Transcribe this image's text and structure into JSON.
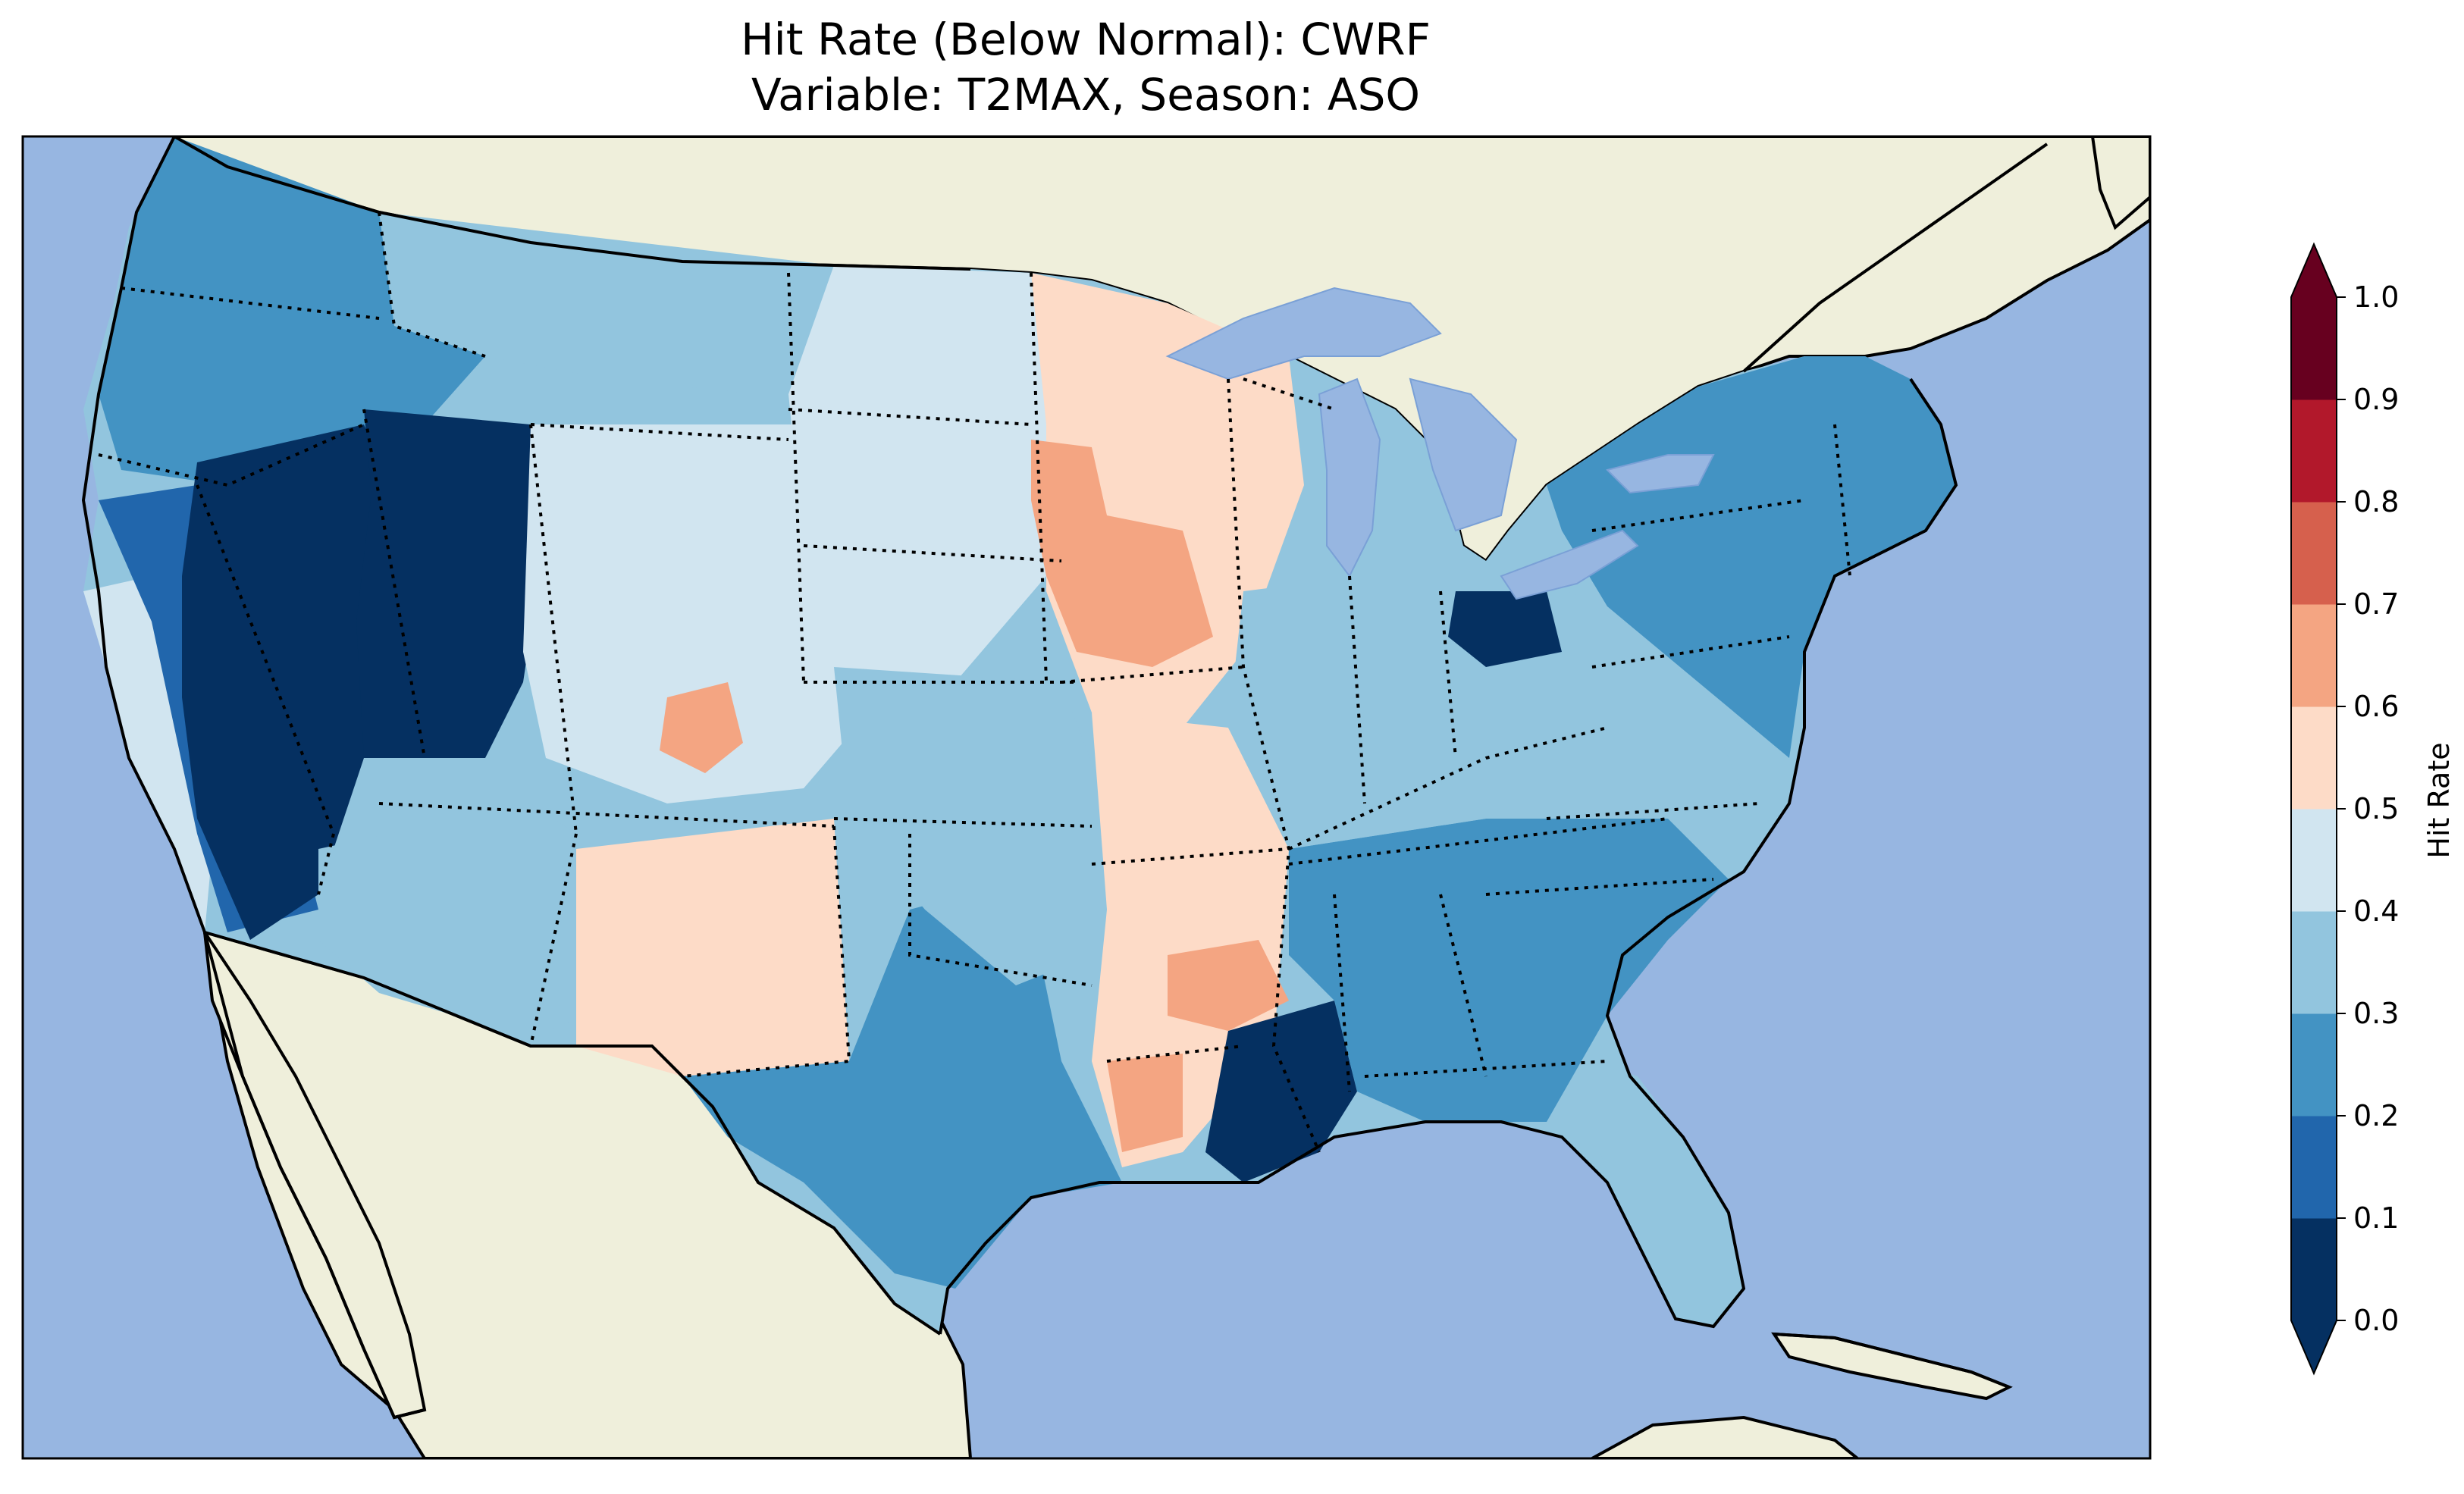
{
  "map": {
    "title_line1": "Hit Rate (Below Normal): CWRF",
    "title_line2": "Variable: T2MAX, Season: ASO",
    "ocean_color": "#97b6e1",
    "land_color": "#efefdb"
  },
  "colorbar": {
    "label": "Hit Rate",
    "ticks": [
      "0.0",
      "0.1",
      "0.2",
      "0.3",
      "0.4",
      "0.5",
      "0.6",
      "0.7",
      "0.8",
      "0.9",
      "1.0"
    ],
    "bins": [
      {
        "from": 0.0,
        "to": 0.1,
        "color": "#053061"
      },
      {
        "from": 0.1,
        "to": 0.2,
        "color": "#2166ac"
      },
      {
        "from": 0.2,
        "to": 0.3,
        "color": "#4393c3"
      },
      {
        "from": 0.3,
        "to": 0.4,
        "color": "#92c5de"
      },
      {
        "from": 0.4,
        "to": 0.5,
        "color": "#d1e5f0"
      },
      {
        "from": 0.5,
        "to": 0.6,
        "color": "#fddbc7"
      },
      {
        "from": 0.6,
        "to": 0.7,
        "color": "#f4a582"
      },
      {
        "from": 0.7,
        "to": 0.8,
        "color": "#d6604d"
      },
      {
        "from": 0.8,
        "to": 0.9,
        "color": "#b2182b"
      },
      {
        "from": 0.9,
        "to": 1.0,
        "color": "#67001f"
      }
    ],
    "extend": "both"
  },
  "regions": [
    {
      "name": "pacific-northwest",
      "value": 0.25
    },
    {
      "name": "northern-rockies",
      "value": 0.3
    },
    {
      "name": "great-basin-nevada",
      "value": 0.05
    },
    {
      "name": "utah",
      "value": 0.08
    },
    {
      "name": "california-central",
      "value": 0.15
    },
    {
      "name": "california-coast",
      "value": 0.45
    },
    {
      "name": "wyoming-colorado",
      "value": 0.42
    },
    {
      "name": "colorado-hotspot",
      "value": 0.6
    },
    {
      "name": "arizona-south",
      "value": 0.38
    },
    {
      "name": "new-mexico",
      "value": 0.52
    },
    {
      "name": "texas-west",
      "value": 0.25
    },
    {
      "name": "northern-plains",
      "value": 0.45
    },
    {
      "name": "iowa-minnesota",
      "value": 0.58
    },
    {
      "name": "iowa-hotspot",
      "value": 0.66
    },
    {
      "name": "missouri-arkansas",
      "value": 0.55
    },
    {
      "name": "arkansas-hotspot",
      "value": 0.68
    },
    {
      "name": "louisiana-east-texas",
      "value": 0.62
    },
    {
      "name": "mississippi-delta",
      "value": 0.07
    },
    {
      "name": "southeast",
      "value": 0.25
    },
    {
      "name": "ohio-valley",
      "value": 0.32
    },
    {
      "name": "ohio-michigan-hotspot",
      "value": 0.08
    },
    {
      "name": "northeast",
      "value": 0.25
    },
    {
      "name": "florida",
      "value": 0.38
    },
    {
      "name": "kansas-oklahoma",
      "value": 0.3
    }
  ]
}
